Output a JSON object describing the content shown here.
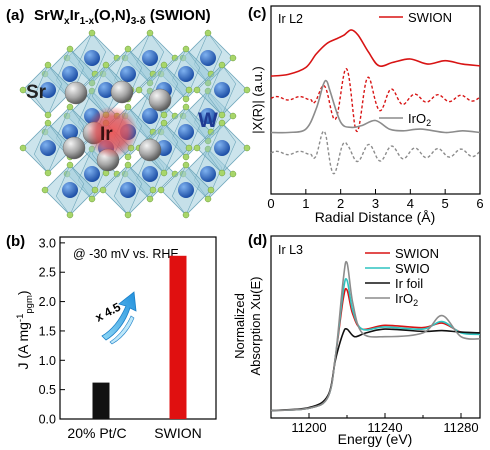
{
  "panel_a": {
    "label": "(a)",
    "formula": "SrWxIr1-x(O,N)3-δ (SWION)",
    "formula_parts": {
      "a": "SrW",
      "b": "x",
      "c": "Ir",
      "d": "1-x",
      "e": "(O,N)",
      "f": "3-δ",
      "g": " (SWION)"
    },
    "atoms": {
      "sr": "Sr",
      "ir": "Ir",
      "w": "W"
    },
    "colors": {
      "octahedron": "#8fc3d4",
      "b_site": "#2f6fc9",
      "anion": "#a8d66a",
      "sr": "#a5a5a5",
      "ir_glow": "#e2454b",
      "w_text": "#1f3a93"
    }
  },
  "panel_b": {
    "label": "(b)",
    "note": "@ -30 mV vs. RHE",
    "multiplier": "x 4.5",
    "ylabel": "J (A mg",
    "ylabel_sup": "-1",
    "ylabel_sub": "pgm",
    "ylabel_close": ")",
    "yticks": [
      "0.0",
      "0.5",
      "1.0",
      "1.5",
      "2.0",
      "2.5",
      "3.0"
    ],
    "colors": {
      "pt": "#111111",
      "swion": "#e01010",
      "arrow": "#3aa9e8"
    }
  },
  "panel_c": {
    "label": "(c)",
    "edge": "Ir L2",
    "legend": [
      "SWION",
      "IrO2"
    ],
    "legend2_parts": {
      "a": "IrO",
      "b": "2"
    },
    "ylabel": "|X(R)| (a.u.)",
    "xlabel": "Radial Distance (Å)",
    "xticks": [
      "0",
      "1",
      "2",
      "3",
      "4",
      "5",
      "6"
    ],
    "colors": {
      "swion": "#d81414",
      "iro2": "#8c8c8c"
    }
  },
  "panel_d": {
    "label": "(d)",
    "edge": "Ir L3",
    "legend": [
      "SWION",
      "SWIO",
      "Ir foil",
      "IrO2"
    ],
    "legend4_parts": {
      "a": "IrO",
      "b": "2"
    },
    "ylabel_line1": "Normalized",
    "ylabel_line2": "Absorption Xu(E)",
    "xlabel": "Energy (eV)",
    "xticks": [
      "11200",
      "11240",
      "11280"
    ],
    "colors": {
      "swion": "#d81414",
      "swio": "#2ec4c0",
      "irfoil": "#111111",
      "iro2": "#8c8c8c"
    }
  },
  "chart_data": [
    {
      "type": "bar",
      "panel": "b",
      "categories": [
        "20% Pt/C",
        "SWION"
      ],
      "values": [
        0.62,
        2.78
      ],
      "ylabel": "J (A mg-1pgm)",
      "ylim": [
        0,
        3.1
      ],
      "annotations": [
        "@ -30 mV vs. RHE",
        "x 4.5"
      ]
    },
    {
      "type": "line",
      "panel": "c",
      "title": "Ir L2",
      "xlabel": "Radial Distance (Å)",
      "ylabel": "|X(R)| (a.u.)",
      "xlim": [
        0,
        6
      ],
      "series": [
        {
          "name": "SWION",
          "x": [
            0,
            0.5,
            1.0,
            1.3,
            1.6,
            1.9,
            2.1,
            2.3,
            2.5,
            2.8,
            3.1,
            3.5,
            4.0,
            4.5,
            5.0,
            5.5,
            6.0
          ],
          "y": [
            6.9,
            7.0,
            7.4,
            8.2,
            8.8,
            9.1,
            9.3,
            9.6,
            9.3,
            8.3,
            7.5,
            7.7,
            7.9,
            7.6,
            7.8,
            7.6,
            7.5
          ]
        },
        {
          "name": "IrO2",
          "x": [
            0,
            0.5,
            1.0,
            1.3,
            1.5,
            1.6,
            1.7,
            2.0,
            2.3,
            2.6,
            3.0,
            3.4,
            3.8,
            4.3,
            5.0,
            5.5,
            6.0
          ],
          "y": [
            3.6,
            3.6,
            3.8,
            5.0,
            6.4,
            6.6,
            6.0,
            4.2,
            3.9,
            4.0,
            4.3,
            3.8,
            3.7,
            3.8,
            3.6,
            3.7,
            3.6
          ]
        }
      ]
    },
    {
      "type": "line",
      "panel": "d",
      "title": "Ir L3",
      "xlabel": "Energy (eV)",
      "ylabel": "Normalized Absorption Xu(E)",
      "xlim": [
        11180,
        11290
      ],
      "series": [
        {
          "name": "SWION",
          "x": [
            11180,
            11200,
            11210,
            11214,
            11218,
            11220,
            11223,
            11228,
            11240,
            11260,
            11270,
            11280,
            11290
          ],
          "y": [
            0.02,
            0.05,
            0.2,
            0.75,
            1.5,
            1.62,
            1.3,
            1.1,
            1.15,
            1.12,
            1.18,
            1.06,
            1.05
          ]
        },
        {
          "name": "SWIO",
          "x": [
            11180,
            11200,
            11210,
            11214,
            11218,
            11220,
            11223,
            11228,
            11240,
            11260,
            11270,
            11280,
            11290
          ],
          "y": [
            0.02,
            0.05,
            0.2,
            0.75,
            1.6,
            1.75,
            1.35,
            1.1,
            1.13,
            1.1,
            1.2,
            1.05,
            1.03
          ]
        },
        {
          "name": "Ir foil",
          "x": [
            11180,
            11200,
            11210,
            11214,
            11218,
            11220,
            11224,
            11230,
            11240,
            11260,
            11270,
            11280,
            11290
          ],
          "y": [
            0.02,
            0.06,
            0.22,
            0.7,
            1.05,
            1.1,
            1.0,
            1.05,
            1.1,
            1.07,
            1.08,
            1.06,
            1.05
          ]
        },
        {
          "name": "IrO2",
          "x": [
            11180,
            11200,
            11210,
            11214,
            11218,
            11220,
            11223,
            11228,
            11240,
            11260,
            11270,
            11280,
            11290
          ],
          "y": [
            0.02,
            0.05,
            0.2,
            0.75,
            1.75,
            1.98,
            1.45,
            1.05,
            1.0,
            1.05,
            1.28,
            1.0,
            0.97
          ]
        }
      ]
    }
  ]
}
